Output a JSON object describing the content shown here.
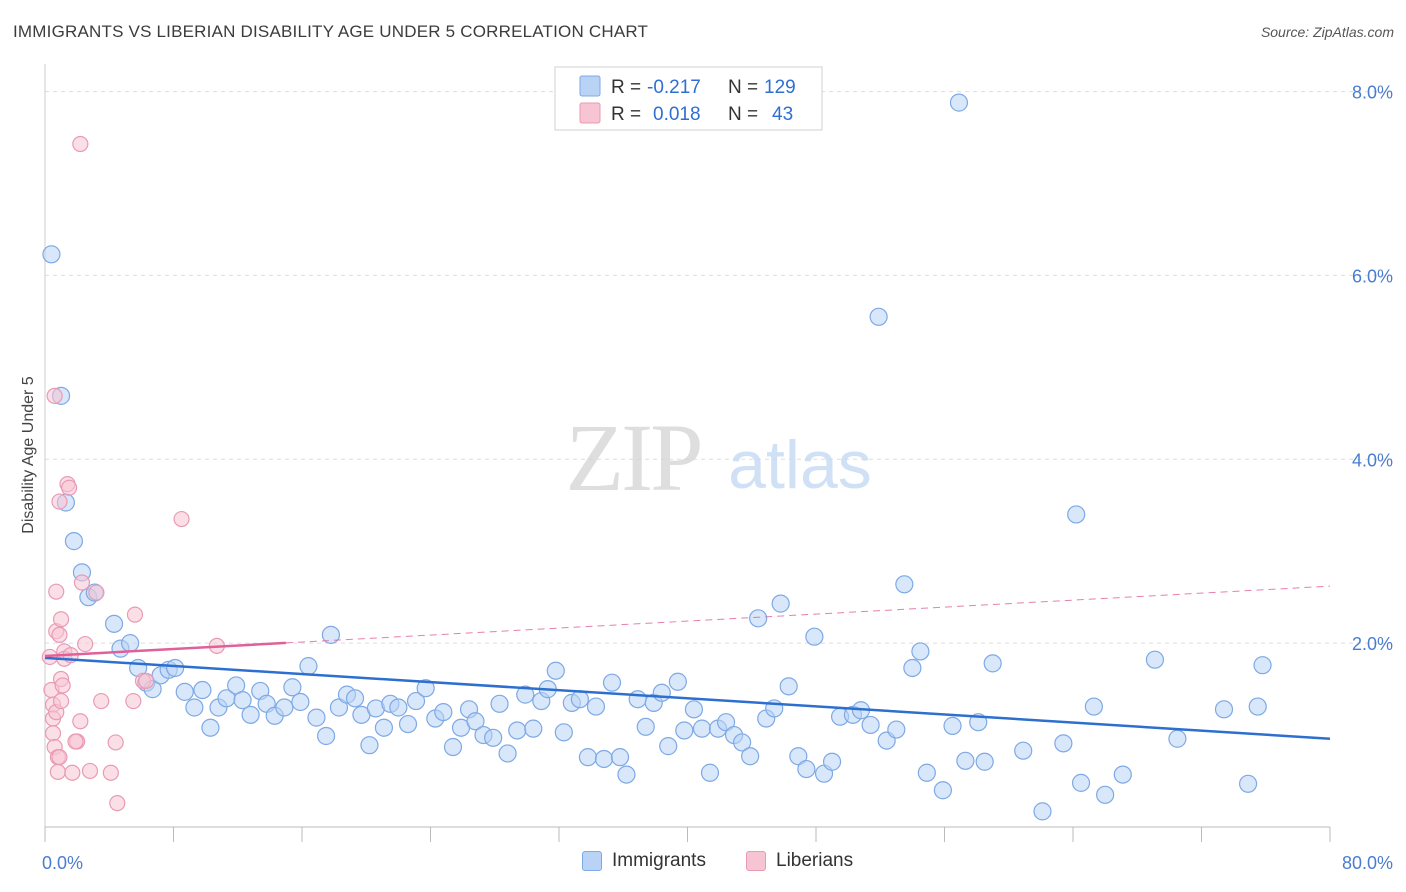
{
  "header": {
    "title": "IMMIGRANTS VS LIBERIAN DISABILITY AGE UNDER 5 CORRELATION CHART",
    "source": "Source: ZipAtlas.com"
  },
  "watermark": {
    "zip": "ZIP",
    "atlas": "atlas"
  },
  "legend": {
    "rows": [
      {
        "series": "Immigrants",
        "r_label": "R =",
        "r_value": "-0.217",
        "n_label": "N =",
        "n_value": "129"
      },
      {
        "series": "Liberians",
        "r_label": "R =",
        "r_value": "0.018",
        "n_label": "N =",
        "n_value": "43"
      }
    ]
  },
  "bottom_legend": {
    "immigrants": "Immigrants",
    "liberians": "Liberians"
  },
  "colors": {
    "immigrants_fill": "#b8d3f5",
    "immigrants_stroke": "#7ea9e4",
    "immigrants_line": "#2d6fcf",
    "liberians_fill": "#f7c4d4",
    "liberians_stroke": "#e99ab4",
    "liberians_line": "#e0609a",
    "tick": "#4a7dd1",
    "grid": "#dddddd"
  },
  "chart_data": {
    "type": "scatter",
    "title": "IMMIGRANTS VS LIBERIAN DISABILITY AGE UNDER 5 CORRELATION CHART",
    "xlabel": "",
    "ylabel": "Disability Age Under 5",
    "xlim": [
      0,
      80
    ],
    "ylim": [
      0,
      8.3
    ],
    "x_tick_labels": [
      {
        "value": 0,
        "label": "0.0%"
      },
      {
        "value": 80,
        "label": "80.0%"
      }
    ],
    "y_tick_labels": [
      {
        "value": 2,
        "label": "2.0%"
      },
      {
        "value": 4,
        "label": "4.0%"
      },
      {
        "value": 6,
        "label": "6.0%"
      },
      {
        "value": 8,
        "label": "8.0%"
      }
    ],
    "series": [
      {
        "name": "Immigrants",
        "r": -0.217,
        "n": 129,
        "trend": {
          "x": [
            0,
            80
          ],
          "y": [
            1.84,
            0.96
          ]
        },
        "points": [
          [
            0.4,
            6.23
          ],
          [
            1.0,
            4.69
          ],
          [
            1.3,
            3.53
          ],
          [
            1.8,
            3.11
          ],
          [
            2.3,
            2.77
          ],
          [
            2.7,
            2.5
          ],
          [
            3.1,
            2.55
          ],
          [
            4.3,
            2.21
          ],
          [
            4.7,
            1.94
          ],
          [
            5.3,
            2.0
          ],
          [
            5.8,
            1.73
          ],
          [
            6.3,
            1.57
          ],
          [
            6.7,
            1.5
          ],
          [
            7.2,
            1.65
          ],
          [
            7.7,
            1.71
          ],
          [
            8.1,
            1.73
          ],
          [
            8.7,
            1.47
          ],
          [
            9.3,
            1.3
          ],
          [
            9.8,
            1.49
          ],
          [
            10.3,
            1.08
          ],
          [
            10.8,
            1.3
          ],
          [
            11.3,
            1.4
          ],
          [
            11.9,
            1.54
          ],
          [
            12.3,
            1.38
          ],
          [
            12.8,
            1.22
          ],
          [
            13.4,
            1.48
          ],
          [
            13.8,
            1.34
          ],
          [
            14.3,
            1.21
          ],
          [
            14.9,
            1.3
          ],
          [
            15.4,
            1.52
          ],
          [
            15.9,
            1.36
          ],
          [
            16.4,
            1.75
          ],
          [
            16.9,
            1.19
          ],
          [
            17.5,
            0.99
          ],
          [
            17.8,
            2.09
          ],
          [
            18.3,
            1.3
          ],
          [
            18.8,
            1.44
          ],
          [
            19.3,
            1.4
          ],
          [
            19.7,
            1.22
          ],
          [
            20.2,
            0.89
          ],
          [
            20.6,
            1.29
          ],
          [
            21.1,
            1.08
          ],
          [
            21.5,
            1.34
          ],
          [
            22.0,
            1.3
          ],
          [
            22.6,
            1.12
          ],
          [
            23.1,
            1.37
          ],
          [
            23.7,
            1.51
          ],
          [
            24.3,
            1.18
          ],
          [
            24.8,
            1.25
          ],
          [
            25.4,
            0.87
          ],
          [
            25.9,
            1.08
          ],
          [
            26.4,
            1.28
          ],
          [
            26.8,
            1.15
          ],
          [
            27.3,
            1.0
          ],
          [
            27.9,
            0.97
          ],
          [
            28.3,
            1.34
          ],
          [
            28.8,
            0.8
          ],
          [
            29.4,
            1.05
          ],
          [
            29.9,
            1.44
          ],
          [
            30.4,
            1.07
          ],
          [
            30.9,
            1.37
          ],
          [
            31.3,
            1.5
          ],
          [
            31.8,
            1.7
          ],
          [
            32.3,
            1.03
          ],
          [
            32.8,
            1.35
          ],
          [
            33.3,
            1.39
          ],
          [
            33.8,
            0.76
          ],
          [
            34.3,
            1.31
          ],
          [
            34.8,
            0.74
          ],
          [
            35.3,
            1.57
          ],
          [
            35.8,
            0.76
          ],
          [
            36.2,
            0.57
          ],
          [
            36.9,
            1.39
          ],
          [
            37.4,
            1.09
          ],
          [
            37.9,
            1.35
          ],
          [
            38.4,
            1.46
          ],
          [
            38.8,
            0.88
          ],
          [
            39.4,
            1.58
          ],
          [
            39.8,
            1.05
          ],
          [
            40.4,
            1.28
          ],
          [
            40.9,
            1.07
          ],
          [
            41.4,
            0.59
          ],
          [
            41.9,
            1.07
          ],
          [
            42.4,
            1.14
          ],
          [
            42.9,
            1.0
          ],
          [
            43.4,
            0.92
          ],
          [
            43.9,
            0.77
          ],
          [
            44.4,
            2.27
          ],
          [
            44.9,
            1.18
          ],
          [
            45.4,
            1.29
          ],
          [
            45.8,
            2.43
          ],
          [
            46.3,
            1.53
          ],
          [
            46.9,
            0.77
          ],
          [
            47.4,
            0.63
          ],
          [
            47.9,
            2.07
          ],
          [
            48.5,
            0.58
          ],
          [
            49.0,
            0.71
          ],
          [
            49.5,
            1.2
          ],
          [
            50.3,
            1.22
          ],
          [
            50.8,
            1.27
          ],
          [
            51.4,
            1.11
          ],
          [
            51.9,
            5.55
          ],
          [
            52.4,
            0.94
          ],
          [
            53.0,
            1.06
          ],
          [
            53.5,
            2.64
          ],
          [
            54.0,
            1.73
          ],
          [
            54.5,
            1.91
          ],
          [
            54.9,
            0.59
          ],
          [
            55.9,
            0.4
          ],
          [
            56.5,
            1.1
          ],
          [
            56.9,
            7.88
          ],
          [
            57.3,
            0.72
          ],
          [
            58.1,
            1.14
          ],
          [
            58.5,
            0.71
          ],
          [
            59.0,
            1.78
          ],
          [
            60.9,
            0.83
          ],
          [
            62.1,
            0.17
          ],
          [
            63.4,
            0.91
          ],
          [
            64.2,
            3.4
          ],
          [
            64.5,
            0.48
          ],
          [
            65.3,
            1.31
          ],
          [
            66.0,
            0.35
          ],
          [
            67.1,
            0.57
          ],
          [
            69.1,
            1.82
          ],
          [
            70.5,
            0.96
          ],
          [
            73.4,
            1.28
          ],
          [
            74.9,
            0.47
          ],
          [
            75.5,
            1.31
          ],
          [
            75.8,
            1.76
          ]
        ]
      },
      {
        "name": "Liberians",
        "r": 0.018,
        "n": 43,
        "trend": {
          "x": [
            0,
            80
          ],
          "y": [
            1.86,
            2.62
          ]
        },
        "points": [
          [
            0.3,
            1.85
          ],
          [
            0.4,
            1.49
          ],
          [
            0.5,
            1.33
          ],
          [
            0.5,
            1.18
          ],
          [
            0.5,
            1.02
          ],
          [
            0.6,
            0.87
          ],
          [
            0.6,
            4.69
          ],
          [
            0.7,
            2.56
          ],
          [
            0.7,
            2.13
          ],
          [
            0.7,
            1.25
          ],
          [
            0.8,
            0.76
          ],
          [
            0.8,
            0.6
          ],
          [
            0.9,
            3.54
          ],
          [
            0.9,
            2.09
          ],
          [
            1.0,
            2.26
          ],
          [
            1.0,
            1.61
          ],
          [
            1.0,
            1.37
          ],
          [
            1.1,
            1.54
          ],
          [
            1.2,
            1.91
          ],
          [
            1.2,
            1.83
          ],
          [
            1.4,
            3.73
          ],
          [
            1.5,
            3.69
          ],
          [
            1.6,
            1.87
          ],
          [
            1.7,
            0.59
          ],
          [
            2.0,
            0.93
          ],
          [
            2.2,
            1.15
          ],
          [
            2.3,
            2.66
          ],
          [
            2.5,
            1.99
          ],
          [
            2.8,
            0.61
          ],
          [
            3.2,
            2.55
          ],
          [
            3.5,
            1.37
          ],
          [
            4.1,
            0.59
          ],
          [
            4.4,
            0.92
          ],
          [
            4.5,
            0.26
          ],
          [
            5.5,
            1.37
          ],
          [
            5.6,
            2.31
          ],
          [
            6.1,
            1.59
          ],
          [
            6.3,
            1.59
          ],
          [
            8.5,
            3.35
          ],
          [
            10.7,
            1.97
          ],
          [
            0.9,
            0.76
          ],
          [
            1.9,
            0.93
          ],
          [
            2.2,
            7.43
          ]
        ]
      }
    ]
  }
}
